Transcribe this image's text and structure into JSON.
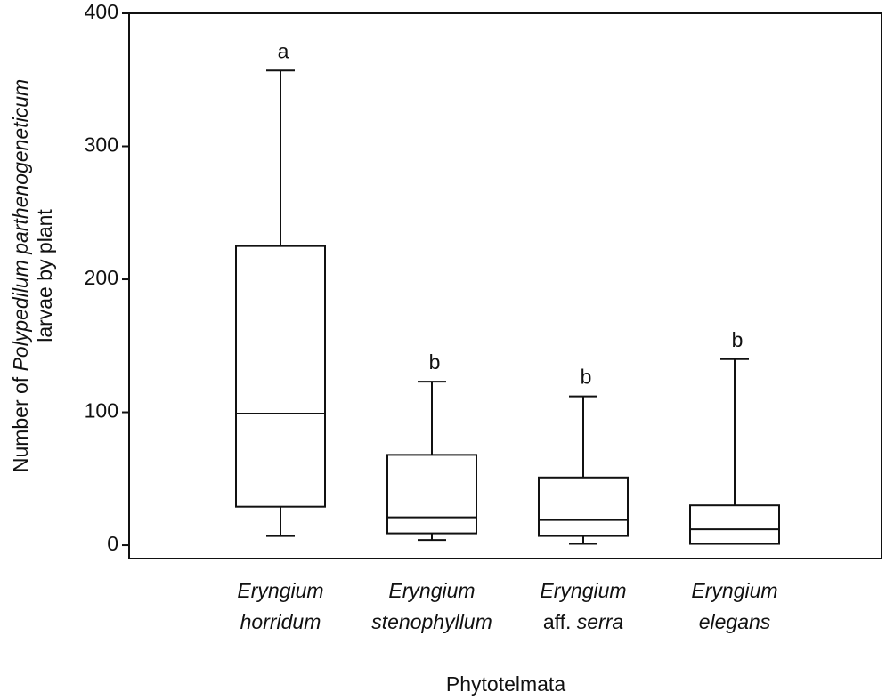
{
  "chart_data": {
    "type": "box",
    "ylabel": [
      "Number of ",
      "Polypedilum parthenogeneticum",
      "larvae by plant"
    ],
    "xlabel": "Phytotelmata",
    "categories": [
      {
        "genus": "Eryngium",
        "epithet": "horridum"
      },
      {
        "genus": "Eryngium",
        "epithet": "stenophyllum"
      },
      {
        "genus": "Eryngium",
        "qualifier": "aff.",
        "epithet": "serra"
      },
      {
        "genus": "Eryngium",
        "epithet": "elegans"
      }
    ],
    "boxes": [
      {
        "low": 7,
        "q1": 29,
        "median": 99,
        "q3": 225,
        "high": 357,
        "letter": "a"
      },
      {
        "low": 4,
        "q1": 9,
        "median": 21,
        "q3": 68,
        "high": 123,
        "letter": "b"
      },
      {
        "low": 1,
        "q1": 7,
        "median": 19,
        "q3": 51,
        "high": 112,
        "letter": "b"
      },
      {
        "low": 1,
        "q1": 1,
        "median": 12,
        "q3": 30,
        "high": 140,
        "letter": "b"
      }
    ],
    "color": "#111111",
    "ylim": [
      -10,
      400
    ],
    "yticks": [
      0,
      100,
      200,
      300,
      400
    ]
  }
}
